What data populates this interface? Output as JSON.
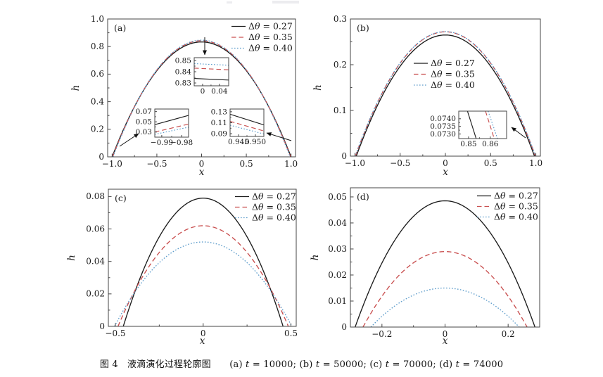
{
  "caption": {
    "plain": "图 4  液滴演化过程轮廓图  (a) t = 10000; (b) t = 50000; (c) t = 70000; (d) t = 74000",
    "parts": [
      {
        "text": "图 4　液滴演化过程轮廓图　　(a) ",
        "italic": false
      },
      {
        "text": "t",
        "italic": true
      },
      {
        "text": " = 10000; (b) ",
        "italic": false
      },
      {
        "text": "t",
        "italic": true
      },
      {
        "text": " = 50000; (c) ",
        "italic": false
      },
      {
        "text": "t",
        "italic": true
      },
      {
        "text": " = 70000; (d) ",
        "italic": false
      },
      {
        "text": "t",
        "italic": true
      },
      {
        "text": " = 74000",
        "italic": false
      }
    ]
  },
  "colors": {
    "black": "#1c1c1c",
    "red": "#c94f4f",
    "blue": "#5d9ccb",
    "axis": "#444444",
    "text": "#1a1a1a"
  },
  "chart_data": {
    "type": "line",
    "description": "Droplet evolution profiles h(x) at four times, three temperature differences",
    "panels": [
      {
        "id": "a",
        "panel_label": "(a)",
        "xlabel": "x",
        "ylabel": "h",
        "xlim": [
          -1.05,
          1.05
        ],
        "ylim": [
          0,
          1.0
        ],
        "xticks": [
          -1.0,
          -0.5,
          0,
          0.5,
          1.0
        ],
        "xtick_labels": [
          "−1.0",
          "−0.5",
          "0",
          "0.5",
          "1.0"
        ],
        "yticks": [
          0,
          0.2,
          0.4,
          0.6,
          0.8,
          1.0
        ],
        "ytick_labels": [
          "0",
          "0.2",
          "0.4",
          "0.6",
          "0.8",
          "1.0"
        ],
        "legend_pos": "top-right",
        "series": [
          {
            "name": "Δθ = 0.27",
            "style": "solid",
            "color": "black",
            "peak": 0.8335,
            "half_width": 1.0
          },
          {
            "name": "Δθ = 0.35",
            "style": "dashed",
            "color": "red",
            "peak": 0.8425,
            "half_width": 0.995
          },
          {
            "name": "Δθ = 0.40",
            "style": "dotted",
            "color": "blue",
            "peak": 0.8465,
            "half_width": 0.99
          }
        ],
        "insets": [
          {
            "xlim": [
              -0.02,
              0.062
            ],
            "ylim": [
              0.8275,
              0.8525
            ],
            "xticks": [
              0,
              0.04
            ],
            "xtick_labels": [
              "0",
              "0.04"
            ],
            "yticks": [
              0.83,
              0.84,
              0.85
            ],
            "ytick_labels": [
              "0.83",
              "0.84",
              "0.85"
            ],
            "lines": [
              {
                "style": "solid",
                "color": "black",
                "points": [
                  [
                    -0.02,
                    0.834
                  ],
                  [
                    0.062,
                    0.8326
                  ]
                ]
              },
              {
                "style": "dashed",
                "color": "red",
                "points": [
                  [
                    -0.02,
                    0.8432
                  ],
                  [
                    0.062,
                    0.8417
                  ]
                ]
              },
              {
                "style": "dotted",
                "color": "blue",
                "points": [
                  [
                    -0.02,
                    0.8472
                  ],
                  [
                    0.062,
                    0.8458
                  ]
                ]
              }
            ]
          },
          {
            "xlim": [
              -0.9935,
              -0.9765
            ],
            "ylim": [
              0.02,
              0.075
            ],
            "xticks": [
              -0.99,
              -0.98
            ],
            "xtick_labels": [
              "−0.99",
              "−0.98"
            ],
            "yticks": [
              0.03,
              0.05,
              0.07
            ],
            "ytick_labels": [
              "0.03",
              "0.05",
              "0.07"
            ],
            "lines": [
              {
                "style": "solid",
                "color": "black",
                "points": [
                  [
                    -0.9935,
                    0.0445
                  ],
                  [
                    -0.9765,
                    0.0625
                  ]
                ]
              },
              {
                "style": "dashed",
                "color": "red",
                "points": [
                  [
                    -0.9935,
                    0.03
                  ],
                  [
                    -0.9765,
                    0.0455
                  ]
                ]
              },
              {
                "style": "dotted",
                "color": "blue",
                "points": [
                  [
                    -0.9935,
                    0.0255
                  ],
                  [
                    -0.9765,
                    0.0395
                  ]
                ]
              }
            ]
          },
          {
            "xlim": [
              0.9425,
              0.9525
            ],
            "ylim": [
              0.085,
              0.135
            ],
            "xticks": [
              0.945,
              0.95
            ],
            "xtick_labels": [
              "0.945",
              "0.950"
            ],
            "yticks": [
              0.09,
              0.11,
              0.13
            ],
            "ytick_labels": [
              "0.09",
              "0.11",
              "0.13"
            ],
            "lines": [
              {
                "style": "solid",
                "color": "black",
                "points": [
                  [
                    0.9425,
                    0.1255
                  ],
                  [
                    0.9525,
                    0.106
                  ]
                ]
              },
              {
                "style": "dashed",
                "color": "red",
                "points": [
                  [
                    0.9425,
                    0.1125
                  ],
                  [
                    0.9525,
                    0.095
                  ]
                ]
              },
              {
                "style": "dotted",
                "color": "blue",
                "points": [
                  [
                    0.9425,
                    0.1055
                  ],
                  [
                    0.9525,
                    0.0895
                  ]
                ]
              }
            ]
          }
        ]
      },
      {
        "id": "b",
        "panel_label": "(b)",
        "xlabel": "x",
        "ylabel": "h",
        "xlim": [
          -1.05,
          1.05
        ],
        "ylim": [
          0,
          0.3
        ],
        "xticks": [
          -1.0,
          -0.5,
          0,
          0.5,
          1.0
        ],
        "xtick_labels": [
          "−1.0",
          "−0.5",
          "0",
          "0.5",
          "1.0"
        ],
        "yticks": [
          0,
          0.1,
          0.2,
          0.3
        ],
        "ytick_labels": [
          "0",
          "0.1",
          "0.2",
          "0.3"
        ],
        "legend_pos": "center",
        "series": [
          {
            "name": "Δθ = 0.27",
            "style": "solid",
            "color": "black",
            "peak": 0.265,
            "half_width": 0.985
          },
          {
            "name": "Δθ = 0.35",
            "style": "dashed",
            "color": "red",
            "peak": 0.272,
            "half_width": 0.995
          },
          {
            "name": "Δθ = 0.40",
            "style": "dotted",
            "color": "blue",
            "peak": 0.2725,
            "half_width": 0.998
          }
        ],
        "insets": [
          {
            "xlim": [
              0.8455,
              0.8675
            ],
            "ylim": [
              0.0727,
              0.0745
            ],
            "xticks": [
              0.85,
              0.86
            ],
            "xtick_labels": [
              "0.85",
              "0.86"
            ],
            "yticks": [
              0.073,
              0.0735,
              0.074
            ],
            "ytick_labels": [
              "0.0730",
              "0.0735",
              "0.0740"
            ],
            "lines": [
              {
                "style": "solid",
                "color": "black",
                "points": [
                  [
                    0.8495,
                    0.0745
                  ],
                  [
                    0.8535,
                    0.0727
                  ]
                ]
              },
              {
                "style": "dashed",
                "color": "red",
                "points": [
                  [
                    0.8578,
                    0.0745
                  ],
                  [
                    0.8618,
                    0.0727
                  ]
                ]
              },
              {
                "style": "dotted",
                "color": "blue",
                "points": [
                  [
                    0.859,
                    0.0745
                  ],
                  [
                    0.8633,
                    0.0727
                  ]
                ]
              }
            ]
          }
        ]
      },
      {
        "id": "c",
        "panel_label": "(c)",
        "xlabel": "x",
        "ylabel": "h",
        "xlim": [
          -0.54,
          0.53
        ],
        "ylim": [
          0,
          0.0845
        ],
        "xticks": [
          -0.5,
          0,
          0.5
        ],
        "xtick_labels": [
          "−0.5",
          "0",
          "0.5"
        ],
        "yticks": [
          0,
          0.02,
          0.04,
          0.06,
          0.08
        ],
        "ytick_labels": [
          "0",
          "0.02",
          "0.04",
          "0.06",
          "0.08"
        ],
        "legend_pos": "top-right",
        "series": [
          {
            "name": "Δθ = 0.27",
            "style": "solid",
            "color": "black",
            "peak": 0.079,
            "half_width": 0.455
          },
          {
            "name": "Δθ = 0.35",
            "style": "dashed",
            "color": "red",
            "peak": 0.062,
            "half_width": 0.485
          },
          {
            "name": "Δθ = 0.40",
            "style": "dotted",
            "color": "blue",
            "peak": 0.052,
            "half_width": 0.505
          }
        ],
        "insets": []
      },
      {
        "id": "d",
        "panel_label": "(d)",
        "xlabel": "x",
        "ylabel": "h",
        "xlim": [
          -0.3,
          0.3
        ],
        "ylim": [
          0,
          0.0535
        ],
        "xticks": [
          -0.2,
          0,
          0.2
        ],
        "xtick_labels": [
          "−0.2",
          "0",
          "0.2"
        ],
        "yticks": [
          0,
          0.01,
          0.02,
          0.03,
          0.04,
          0.05
        ],
        "ytick_labels": [
          "0",
          "0.01",
          "0.02",
          "0.03",
          "0.04",
          "0.05"
        ],
        "legend_pos": "top-right",
        "series": [
          {
            "name": "Δθ = 0.27",
            "style": "solid",
            "color": "black",
            "peak": 0.0485,
            "half_width": 0.285
          },
          {
            "name": "Δθ = 0.35",
            "style": "dashed",
            "color": "red",
            "peak": 0.029,
            "half_width": 0.26
          },
          {
            "name": "Δθ = 0.40",
            "style": "dotted",
            "color": "blue",
            "peak": 0.015,
            "half_width": 0.235
          }
        ],
        "insets": []
      }
    ]
  }
}
